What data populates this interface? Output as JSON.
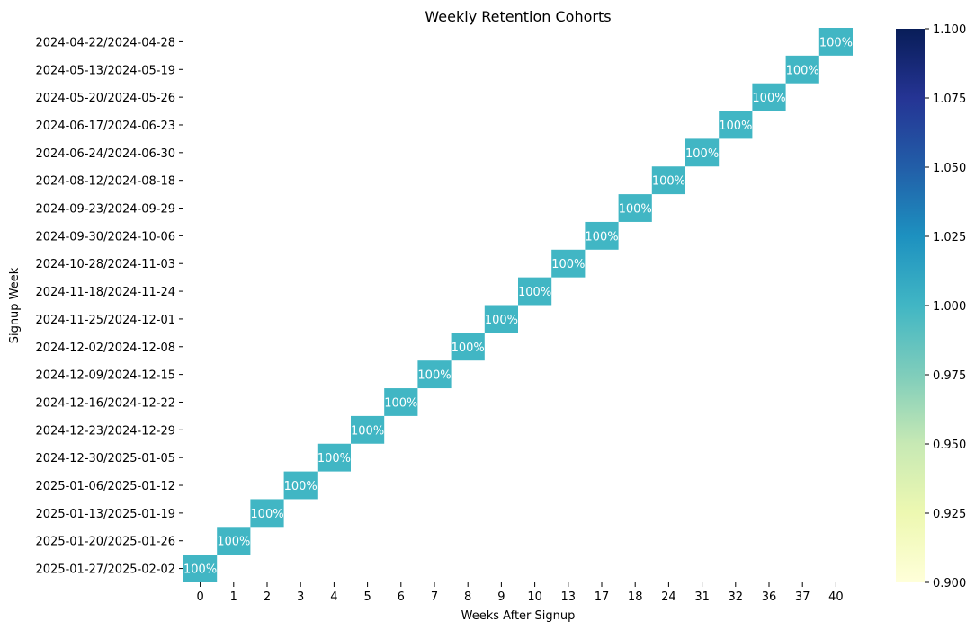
{
  "chart_data": {
    "type": "heatmap",
    "title": "Weekly Retention Cohorts",
    "xlabel": "Weeks After Signup",
    "ylabel": "Signup Week",
    "x_categories": [
      "0",
      "1",
      "2",
      "3",
      "4",
      "5",
      "6",
      "7",
      "8",
      "9",
      "10",
      "13",
      "17",
      "18",
      "24",
      "31",
      "32",
      "36",
      "37",
      "40"
    ],
    "y_categories": [
      "2024-04-22/2024-04-28",
      "2024-05-13/2024-05-19",
      "2024-05-20/2024-05-26",
      "2024-06-17/2024-06-23",
      "2024-06-24/2024-06-30",
      "2024-08-12/2024-08-18",
      "2024-09-23/2024-09-29",
      "2024-09-30/2024-10-06",
      "2024-10-28/2024-11-03",
      "2024-11-18/2024-11-24",
      "2024-11-25/2024-12-01",
      "2024-12-02/2024-12-08",
      "2024-12-09/2024-12-15",
      "2024-12-16/2024-12-22",
      "2024-12-23/2024-12-29",
      "2024-12-30/2025-01-05",
      "2025-01-06/2025-01-12",
      "2025-01-13/2025-01-19",
      "2025-01-20/2025-01-26",
      "2025-01-27/2025-02-02"
    ],
    "cells": [
      {
        "row": "2024-04-22/2024-04-28",
        "col": "40",
        "value": 1.0,
        "label": "100%"
      },
      {
        "row": "2024-05-13/2024-05-19",
        "col": "37",
        "value": 1.0,
        "label": "100%"
      },
      {
        "row": "2024-05-20/2024-05-26",
        "col": "36",
        "value": 1.0,
        "label": "100%"
      },
      {
        "row": "2024-06-17/2024-06-23",
        "col": "32",
        "value": 1.0,
        "label": "100%"
      },
      {
        "row": "2024-06-24/2024-06-30",
        "col": "31",
        "value": 1.0,
        "label": "100%"
      },
      {
        "row": "2024-08-12/2024-08-18",
        "col": "24",
        "value": 1.0,
        "label": "100%"
      },
      {
        "row": "2024-09-23/2024-09-29",
        "col": "18",
        "value": 1.0,
        "label": "100%"
      },
      {
        "row": "2024-09-30/2024-10-06",
        "col": "17",
        "value": 1.0,
        "label": "100%"
      },
      {
        "row": "2024-10-28/2024-11-03",
        "col": "13",
        "value": 1.0,
        "label": "100%"
      },
      {
        "row": "2024-11-18/2024-11-24",
        "col": "10",
        "value": 1.0,
        "label": "100%"
      },
      {
        "row": "2024-11-25/2024-12-01",
        "col": "9",
        "value": 1.0,
        "label": "100%"
      },
      {
        "row": "2024-12-02/2024-12-08",
        "col": "8",
        "value": 1.0,
        "label": "100%"
      },
      {
        "row": "2024-12-09/2024-12-15",
        "col": "7",
        "value": 1.0,
        "label": "100%"
      },
      {
        "row": "2024-12-16/2024-12-22",
        "col": "6",
        "value": 1.0,
        "label": "100%"
      },
      {
        "row": "2024-12-23/2024-12-29",
        "col": "5",
        "value": 1.0,
        "label": "100%"
      },
      {
        "row": "2024-12-30/2025-01-05",
        "col": "4",
        "value": 1.0,
        "label": "100%"
      },
      {
        "row": "2025-01-06/2025-01-12",
        "col": "3",
        "value": 1.0,
        "label": "100%"
      },
      {
        "row": "2025-01-13/2025-01-19",
        "col": "2",
        "value": 1.0,
        "label": "100%"
      },
      {
        "row": "2025-01-20/2025-01-26",
        "col": "1",
        "value": 1.0,
        "label": "100%"
      },
      {
        "row": "2025-01-27/2025-02-02",
        "col": "0",
        "value": 1.0,
        "label": "100%"
      }
    ],
    "colorbar": {
      "min": 0.9,
      "max": 1.1,
      "ticks": [
        "0.900",
        "0.925",
        "0.950",
        "0.975",
        "1.000",
        "1.025",
        "1.050",
        "1.075",
        "1.100"
      ],
      "colormap": "YlGnBu",
      "stops": [
        "#ffffd9",
        "#edf8b1",
        "#c7e9b4",
        "#7fcdbb",
        "#41b6c4",
        "#1d91c0",
        "#225ea8",
        "#253494",
        "#081d58"
      ]
    },
    "grid": false
  }
}
